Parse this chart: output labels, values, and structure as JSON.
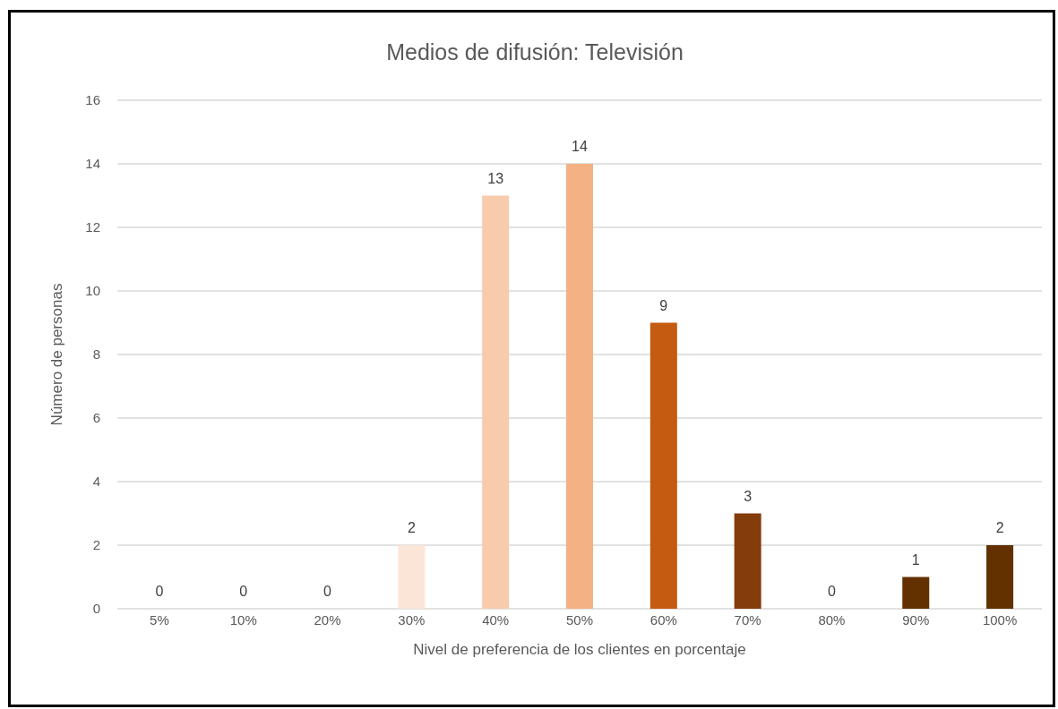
{
  "chart_data": {
    "type": "bar",
    "title": "Medios de difusión: Televisión",
    "xlabel": "Nivel de preferencia de los clientes en porcentaje",
    "ylabel": "Número de personas",
    "categories": [
      "5%",
      "10%",
      "20%",
      "30%",
      "40%",
      "50%",
      "60%",
      "70%",
      "80%",
      "90%",
      "100%"
    ],
    "values": [
      0,
      0,
      0,
      2,
      13,
      14,
      9,
      3,
      0,
      1,
      2
    ],
    "colors": [
      "#fbe5d6",
      "#fbe5d6",
      "#fbe5d6",
      "#fbe5d6",
      "#f8cbad",
      "#f4b183",
      "#c55a11",
      "#843c0c",
      "#843c0c",
      "#633100",
      "#633100"
    ],
    "ylim": [
      0,
      16
    ],
    "yticks": [
      0,
      2,
      4,
      6,
      8,
      10,
      12,
      14,
      16
    ],
    "grid": "y",
    "data_labels": true
  }
}
